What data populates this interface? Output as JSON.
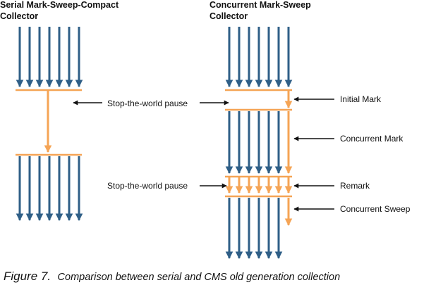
{
  "titles": {
    "serial_line1": "Serial Mark-Sweep-Compact",
    "serial_line2": "Collector",
    "cms_line1": "Concurrent Mark-Sweep",
    "cms_line2": "Collector"
  },
  "labels": {
    "serial_pause": "Stop-the-world pause",
    "cms_pause": "Stop-the-world pause",
    "initial_mark": "Initial Mark",
    "concurrent_mark": "Concurrent Mark",
    "remark": "Remark",
    "concurrent_sweep": "Concurrent Sweep"
  },
  "caption": {
    "figure": "Figure 7.",
    "text": "Comparison between serial and CMS old generation collection"
  },
  "colors": {
    "thread": "#2f5f87",
    "gc": "#f5a455",
    "pointer": "#111111",
    "text": "#111111"
  }
}
